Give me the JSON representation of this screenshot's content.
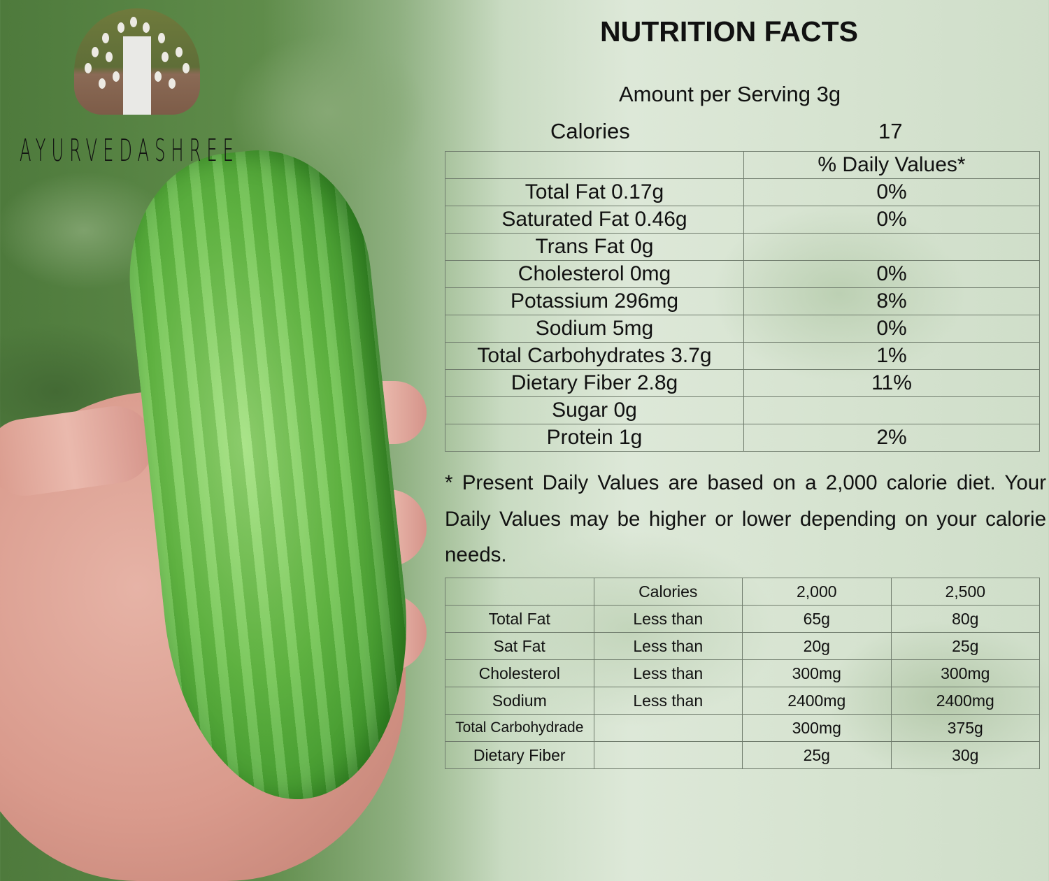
{
  "brand": {
    "name": "AYURVEDASHREE",
    "logo_icon": "tree-icon"
  },
  "title": "NUTRITION FACTS",
  "serving": "Amount per Serving  3g",
  "calories": {
    "label": "Calories",
    "value": "17"
  },
  "nutrients": {
    "header": [
      "",
      "% Daily Values*"
    ],
    "rows": [
      [
        "Total Fat 0.17g",
        "0%"
      ],
      [
        "Saturated Fat 0.46g",
        "0%"
      ],
      [
        "Trans Fat 0g",
        ""
      ],
      [
        "Cholesterol 0mg",
        "0%"
      ],
      [
        "Potassium 296mg",
        "8%"
      ],
      [
        "Sodium 5mg",
        "0%"
      ],
      [
        "Total Carbohydrates 3.7g",
        "1%"
      ],
      [
        "Dietary Fiber 2.8g",
        "11%"
      ],
      [
        "Sugar 0g",
        ""
      ],
      [
        "Protein 1g",
        "2%"
      ]
    ]
  },
  "footnote": "* Present Daily Values are based on a 2,000 calorie diet. Your Daily Values may be higher or lower depending on your calorie needs.",
  "reference": {
    "rows": [
      [
        "",
        "Calories",
        "2,000",
        "2,500"
      ],
      [
        "Total Fat",
        "Less than",
        "65g",
        "80g"
      ],
      [
        "Sat Fat",
        "Less than",
        "20g",
        "25g"
      ],
      [
        "Cholesterol",
        "Less than",
        "300mg",
        "300mg"
      ],
      [
        "Sodium",
        "Less than",
        "2400mg",
        "2400mg"
      ],
      [
        "Total Carbohydrade",
        "",
        "300mg",
        "375g"
      ],
      [
        "Dietary Fiber",
        "",
        "25g",
        "30g"
      ]
    ]
  }
}
